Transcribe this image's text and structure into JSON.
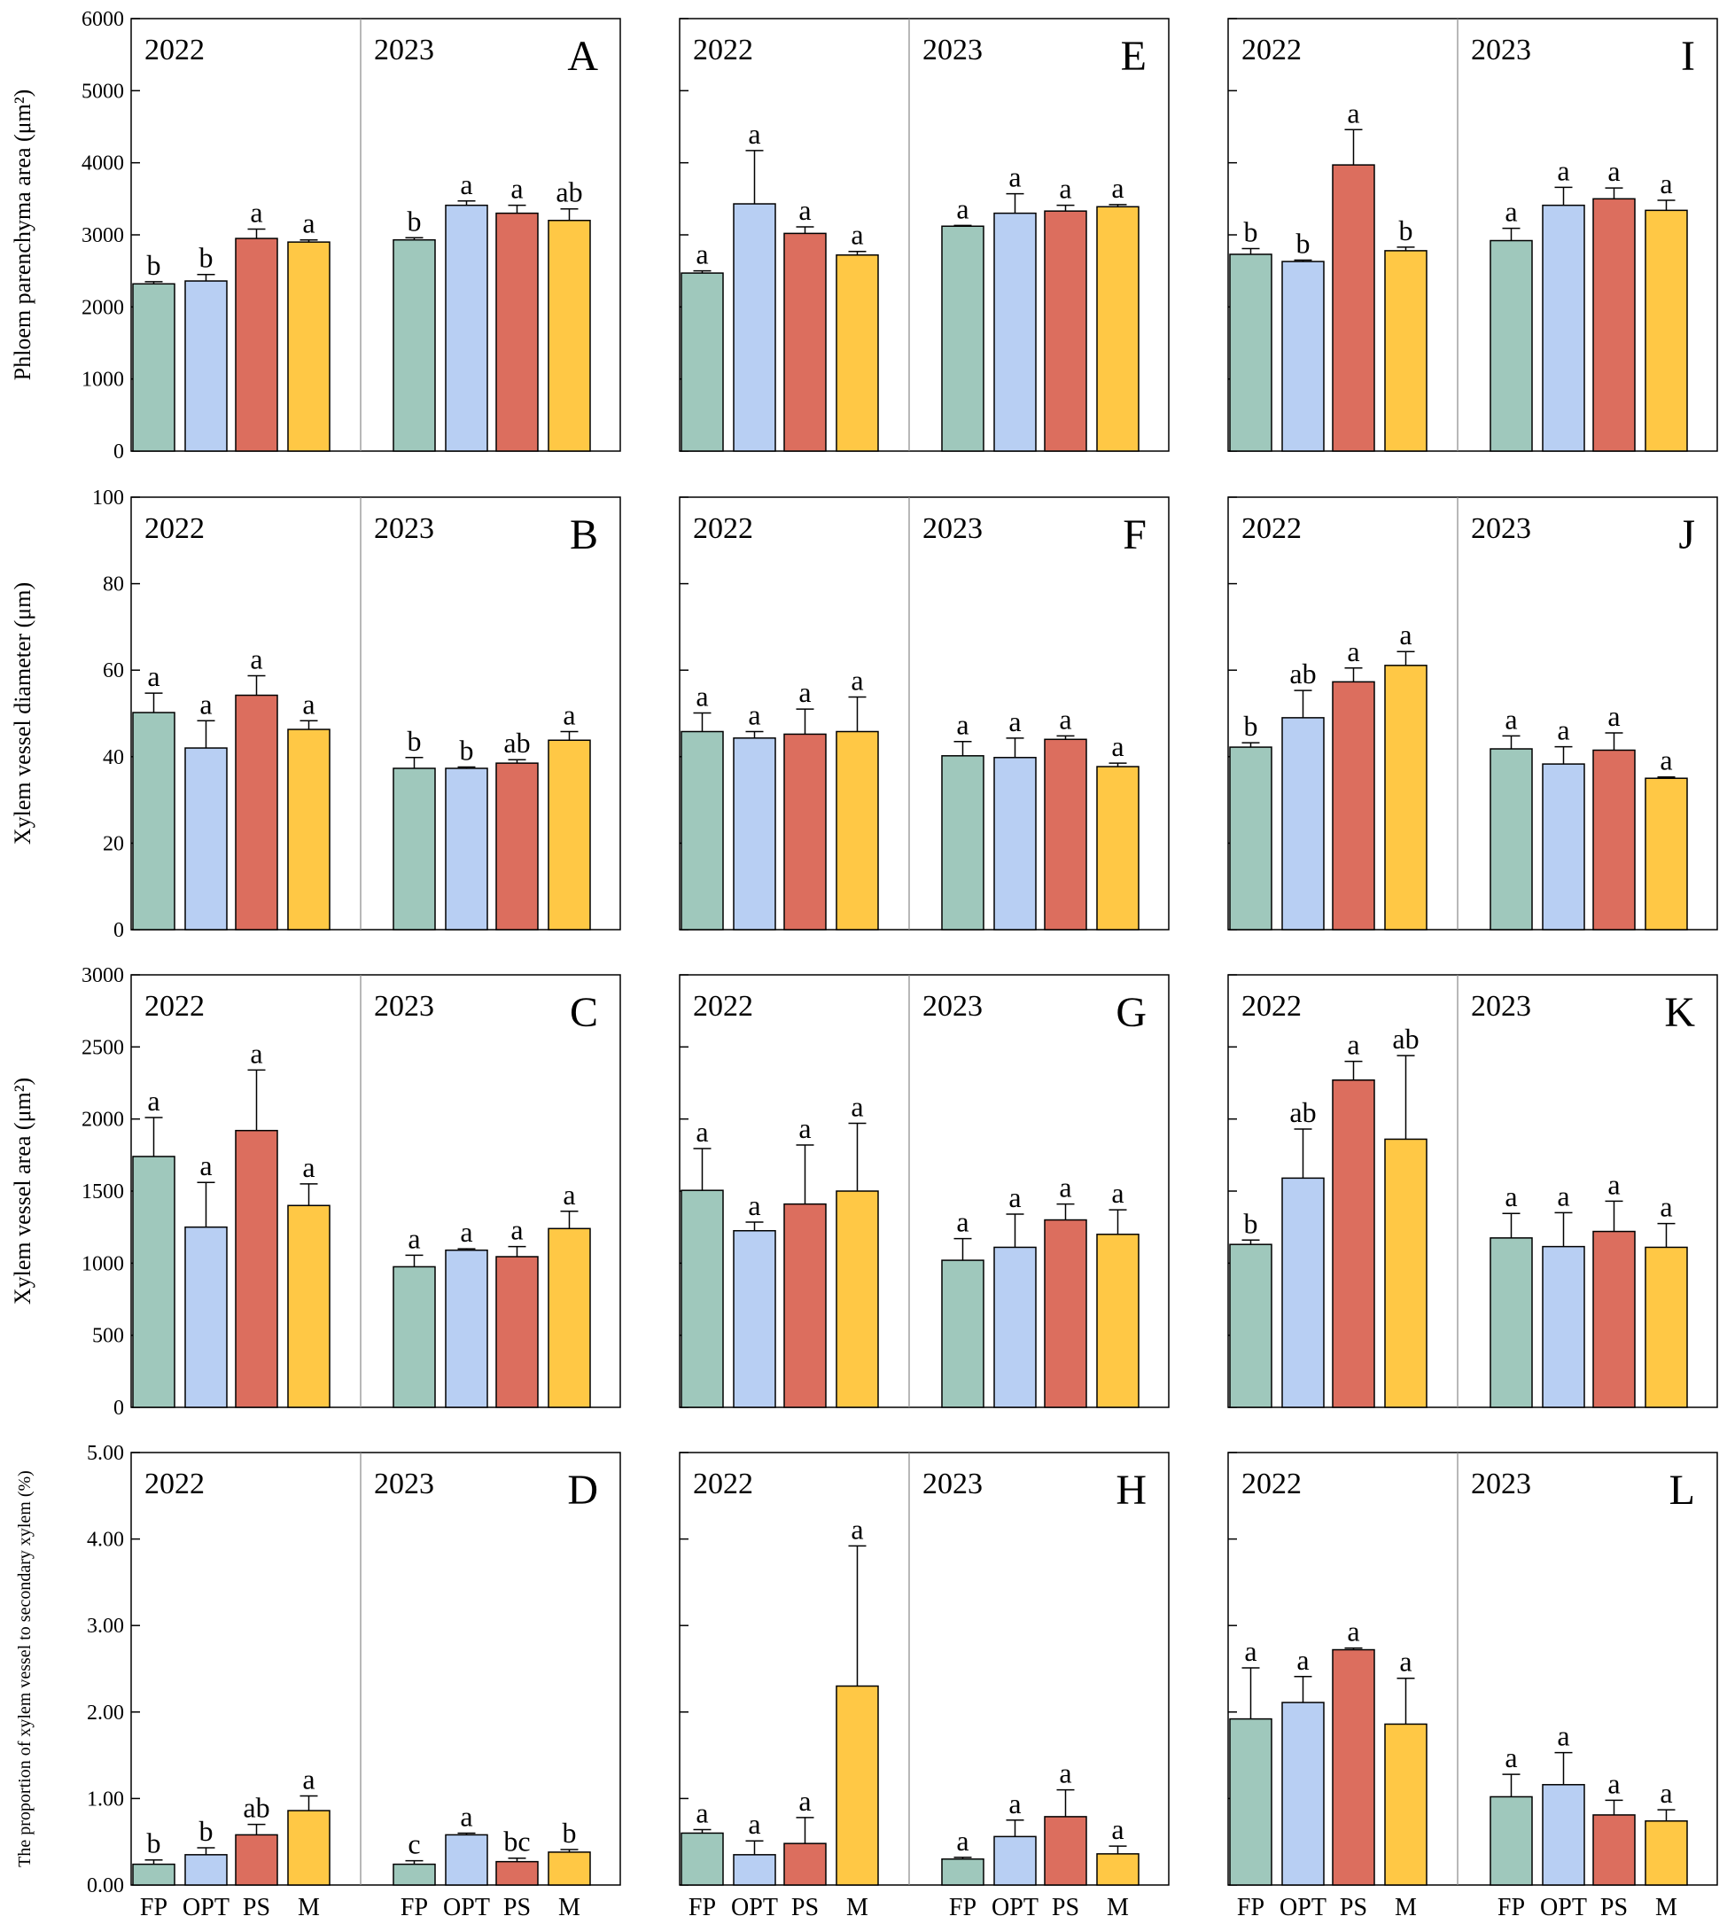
{
  "chart_data": {
    "type": "bar",
    "title": "",
    "categories": [
      "FP",
      "OPT",
      "PS",
      "M"
    ],
    "years": [
      "2022",
      "2023"
    ],
    "colors": {
      "FP": "#9FC8BC",
      "OPT": "#B8CFF3",
      "PS": "#DC6E5E",
      "M": "#FFC845"
    },
    "rows": [
      {
        "ylabel": "Phloem parenchyma area (μm²)",
        "ylim": [
          0,
          6000
        ],
        "ticks": [
          "0",
          "1000",
          "2000",
          "3000",
          "4000",
          "5000",
          "6000"
        ],
        "tick_values": [
          0,
          1000,
          2000,
          3000,
          4000,
          5000,
          6000
        ],
        "panels": [
          {
            "letter": "A",
            "2022": {
              "values": [
                2320,
                2360,
                2950,
                2900
              ],
              "errors": [
                30,
                90,
                130,
                30
              ],
              "labels": [
                "b",
                "b",
                "a",
                "a"
              ]
            },
            "2023": {
              "values": [
                2930,
                3410,
                3300,
                3200
              ],
              "errors": [
                30,
                60,
                110,
                160
              ],
              "labels": [
                "b",
                "a",
                "a",
                "ab"
              ]
            }
          },
          {
            "letter": "E",
            "2022": {
              "values": [
                2470,
                3430,
                3020,
                2720
              ],
              "errors": [
                30,
                740,
                90,
                50
              ],
              "labels": [
                "a",
                "a",
                "a",
                "a"
              ]
            },
            "2023": {
              "values": [
                3120,
                3300,
                3330,
                3390
              ],
              "errors": [
                10,
                270,
                80,
                30
              ],
              "labels": [
                "a",
                "a",
                "a",
                "a"
              ]
            }
          },
          {
            "letter": "I",
            "2022": {
              "values": [
                2730,
                2630,
                3970,
                2780
              ],
              "errors": [
                80,
                20,
                490,
                50
              ],
              "labels": [
                "b",
                "b",
                "a",
                "b"
              ]
            },
            "2023": {
              "values": [
                2920,
                3410,
                3500,
                3340
              ],
              "errors": [
                170,
                250,
                150,
                140
              ],
              "labels": [
                "a",
                "a",
                "a",
                "a"
              ]
            }
          }
        ]
      },
      {
        "ylabel": "Xylem vessel diameter (μm)",
        "ylim": [
          0,
          100
        ],
        "ticks": [
          "0",
          "20",
          "40",
          "60",
          "80",
          "100"
        ],
        "tick_values": [
          0,
          20,
          40,
          60,
          80,
          100
        ],
        "panels": [
          {
            "letter": "B",
            "2022": {
              "values": [
                50.2,
                42.0,
                54.2,
                46.3
              ],
              "errors": [
                4.5,
                6.3,
                4.5,
                2.0
              ],
              "labels": [
                "a",
                "a",
                "a",
                "a"
              ]
            },
            "2023": {
              "values": [
                37.3,
                37.3,
                38.5,
                43.8
              ],
              "errors": [
                2.5,
                0.3,
                0.8,
                2.0
              ],
              "labels": [
                "b",
                "b",
                "ab",
                "a"
              ]
            }
          },
          {
            "letter": "F",
            "2022": {
              "values": [
                45.8,
                44.3,
                45.2,
                45.8
              ],
              "errors": [
                4.3,
                1.5,
                5.8,
                8.0
              ],
              "labels": [
                "a",
                "a",
                "a",
                "a"
              ]
            },
            "2023": {
              "values": [
                40.2,
                39.8,
                44.0,
                37.7
              ],
              "errors": [
                3.3,
                4.5,
                0.8,
                0.8
              ],
              "labels": [
                "a",
                "a",
                "a",
                "a"
              ]
            }
          },
          {
            "letter": "J",
            "2022": {
              "values": [
                42.2,
                49.0,
                57.3,
                61.1
              ],
              "errors": [
                1.0,
                6.3,
                3.2,
                3.2
              ],
              "labels": [
                "b",
                "ab",
                "a",
                "a"
              ]
            },
            "2023": {
              "values": [
                41.8,
                38.3,
                41.5,
                35.0
              ],
              "errors": [
                3.0,
                4.0,
                4.0,
                0.3
              ],
              "labels": [
                "a",
                "a",
                "a",
                "a"
              ]
            }
          }
        ]
      },
      {
        "ylabel": "Xylem vessel area (μm²)",
        "ylim": [
          0,
          3000
        ],
        "ticks": [
          "0",
          "500",
          "1000",
          "1500",
          "2000",
          "2500",
          "3000"
        ],
        "tick_values": [
          0,
          500,
          1000,
          1500,
          2000,
          2500,
          3000
        ],
        "panels": [
          {
            "letter": "C",
            "2022": {
              "values": [
                1740,
                1250,
                1920,
                1400
              ],
              "errors": [
                270,
                310,
                420,
                150
              ],
              "labels": [
                "a",
                "a",
                "a",
                "a"
              ]
            },
            "2023": {
              "values": [
                975,
                1090,
                1045,
                1240
              ],
              "errors": [
                80,
                10,
                70,
                120
              ],
              "labels": [
                "a",
                "a",
                "a",
                "a"
              ]
            }
          },
          {
            "letter": "G",
            "2022": {
              "values": [
                1505,
                1225,
                1410,
                1500
              ],
              "errors": [
                290,
                60,
                410,
                470
              ],
              "labels": [
                "a",
                "a",
                "a",
                "a"
              ]
            },
            "2023": {
              "values": [
                1020,
                1110,
                1300,
                1200
              ],
              "errors": [
                150,
                230,
                110,
                170
              ],
              "labels": [
                "a",
                "a",
                "a",
                "a"
              ]
            }
          },
          {
            "letter": "K",
            "2022": {
              "values": [
                1130,
                1590,
                2270,
                1860
              ],
              "errors": [
                30,
                340,
                130,
                580
              ],
              "labels": [
                "b",
                "ab",
                "a",
                "ab"
              ]
            },
            "2023": {
              "values": [
                1175,
                1115,
                1220,
                1110
              ],
              "errors": [
                170,
                235,
                210,
                165
              ],
              "labels": [
                "a",
                "a",
                "a",
                "a"
              ]
            }
          }
        ]
      },
      {
        "ylabel": "The proportion of xylem vessel to secondary xylem (%)",
        "ylim": [
          0,
          5
        ],
        "ticks": [
          "0.00",
          "1.00",
          "2.00",
          "3.00",
          "4.00",
          "5.00"
        ],
        "tick_values": [
          0,
          1,
          2,
          3,
          4,
          5
        ],
        "panels": [
          {
            "letter": "D",
            "2022": {
              "values": [
                0.24,
                0.35,
                0.58,
                0.86
              ],
              "errors": [
                0.05,
                0.08,
                0.12,
                0.17
              ],
              "labels": [
                "b",
                "b",
                "ab",
                "a"
              ]
            },
            "2023": {
              "values": [
                0.24,
                0.58,
                0.27,
                0.38
              ],
              "errors": [
                0.04,
                0.02,
                0.04,
                0.03
              ],
              "labels": [
                "c",
                "a",
                "bc",
                "b"
              ]
            }
          },
          {
            "letter": "H",
            "2022": {
              "values": [
                0.6,
                0.35,
                0.48,
                2.3
              ],
              "errors": [
                0.04,
                0.16,
                0.3,
                1.62
              ],
              "labels": [
                "a",
                "a",
                "a",
                "a"
              ]
            },
            "2023": {
              "values": [
                0.3,
                0.56,
                0.79,
                0.36
              ],
              "errors": [
                0.02,
                0.19,
                0.31,
                0.09
              ],
              "labels": [
                "a",
                "a",
                "a",
                "a"
              ]
            }
          },
          {
            "letter": "L",
            "2022": {
              "values": [
                1.92,
                2.11,
                2.72,
                1.86
              ],
              "errors": [
                0.59,
                0.3,
                0.02,
                0.53
              ],
              "labels": [
                "a",
                "a",
                "a",
                "a"
              ]
            },
            "2023": {
              "values": [
                1.02,
                1.16,
                0.81,
                0.74
              ],
              "errors": [
                0.26,
                0.37,
                0.17,
                0.13
              ],
              "labels": [
                "a",
                "a",
                "a",
                "a"
              ]
            }
          }
        ]
      }
    ]
  }
}
